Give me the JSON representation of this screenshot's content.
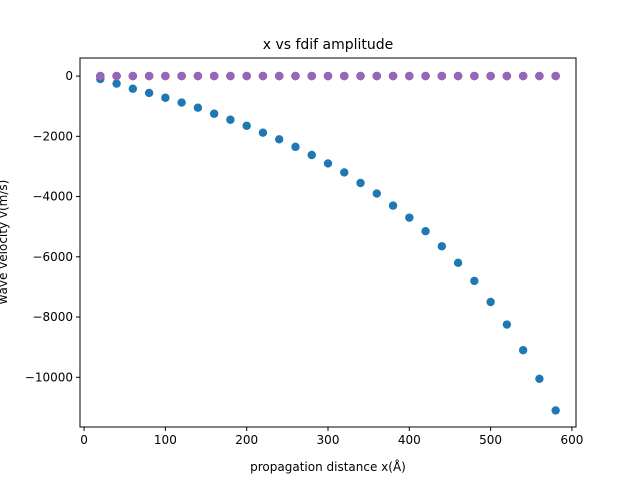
{
  "chart_data": {
    "type": "scatter",
    "title": "x vs fdif amplitude",
    "xlabel": "propagation distance x(Å)",
    "ylabel": "wave velocity v(m/s)",
    "xlim": [
      -5,
      605
    ],
    "ylim": [
      -11650,
      600
    ],
    "xticks": [
      0,
      100,
      200,
      300,
      400,
      500,
      600
    ],
    "yticks": [
      0,
      -2000,
      -4000,
      -6000,
      -8000,
      -10000
    ],
    "grid": false,
    "series": [
      {
        "color": "#1f77b4",
        "x": [
          20,
          40,
          60,
          80,
          100,
          120,
          140,
          160,
          180,
          200,
          220,
          240,
          260,
          280,
          300,
          320,
          340,
          360,
          380,
          400,
          420,
          440,
          460,
          480,
          500,
          520,
          540,
          560,
          580
        ],
        "y": [
          -100,
          -250,
          -420,
          -560,
          -720,
          -880,
          -1050,
          -1250,
          -1450,
          -1650,
          -1880,
          -2100,
          -2350,
          -2620,
          -2900,
          -3200,
          -3550,
          -3900,
          -4300,
          -4700,
          -5150,
          -5650,
          -6200,
          -6800,
          -7500,
          -8250,
          -9100,
          -10050,
          -11100
        ]
      },
      {
        "color": "#ff7f0e",
        "x": [
          20,
          40,
          60,
          80,
          100,
          120,
          140,
          160,
          180,
          200,
          220,
          240,
          260,
          280,
          300,
          320,
          340,
          360,
          380,
          400,
          420,
          440,
          460,
          480,
          500,
          520,
          540,
          560,
          580
        ],
        "y": [
          0,
          0,
          0,
          0,
          0,
          0,
          0,
          0,
          0,
          0,
          0,
          0,
          0,
          0,
          0,
          0,
          0,
          0,
          0,
          0,
          0,
          0,
          0,
          0,
          0,
          0,
          0,
          0,
          0
        ]
      },
      {
        "color": "#2ca02c",
        "x": [
          20,
          40,
          60,
          80,
          100,
          120,
          140,
          160,
          180,
          200,
          220,
          240,
          260,
          280,
          300,
          320,
          340,
          360,
          380,
          400,
          420,
          440,
          460,
          480,
          500,
          520,
          540,
          560,
          580
        ],
        "y": [
          0,
          0,
          0,
          0,
          0,
          0,
          0,
          0,
          0,
          0,
          0,
          0,
          0,
          0,
          0,
          0,
          0,
          0,
          0,
          0,
          0,
          0,
          0,
          0,
          0,
          0,
          0,
          0,
          0
        ]
      },
      {
        "color": "#d62728",
        "x": [
          20,
          40,
          60,
          80,
          100,
          120,
          140,
          160,
          180,
          200,
          220,
          240,
          260,
          280,
          300,
          320,
          340,
          360,
          380,
          400,
          420,
          440,
          460,
          480,
          500,
          520,
          540,
          560,
          580
        ],
        "y": [
          0,
          0,
          0,
          0,
          0,
          0,
          0,
          0,
          0,
          0,
          0,
          0,
          0,
          0,
          0,
          0,
          0,
          0,
          0,
          0,
          0,
          0,
          0,
          0,
          0,
          0,
          0,
          0,
          0
        ]
      },
      {
        "color": "#9467bd",
        "x": [
          20,
          40,
          60,
          80,
          100,
          120,
          140,
          160,
          180,
          200,
          220,
          240,
          260,
          280,
          300,
          320,
          340,
          360,
          380,
          400,
          420,
          440,
          460,
          480,
          500,
          520,
          540,
          560,
          580
        ],
        "y": [
          0,
          0,
          0,
          0,
          0,
          0,
          0,
          0,
          0,
          0,
          0,
          0,
          0,
          0,
          0,
          0,
          0,
          0,
          0,
          0,
          0,
          0,
          0,
          0,
          0,
          0,
          0,
          0,
          0
        ]
      }
    ]
  }
}
